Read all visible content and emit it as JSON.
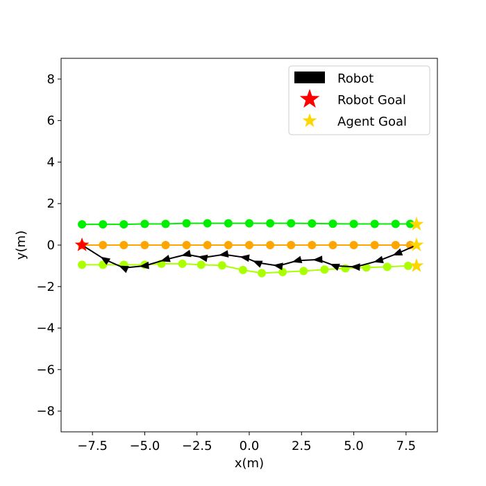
{
  "chart_data": {
    "type": "line",
    "xlabel": "x(m)",
    "ylabel": "y(m)",
    "xlim": [
      -9,
      9
    ],
    "ylim": [
      -9,
      9
    ],
    "xticks": [
      -7.5,
      -5.0,
      -2.5,
      0.0,
      2.5,
      5.0,
      7.5
    ],
    "xtick_labels": [
      "−7.5",
      "−5.0",
      "−2.5",
      "0.0",
      "2.5",
      "5.0",
      "7.5"
    ],
    "yticks": [
      -8,
      -6,
      -4,
      -2,
      0,
      2,
      4,
      6,
      8
    ],
    "ytick_labels": [
      "−8",
      "−6",
      "−4",
      "−2",
      "0",
      "2",
      "4",
      "6",
      "8"
    ],
    "grid": false,
    "legend_position": "top-right",
    "legend": [
      {
        "label": "Robot",
        "marker": "rectangle",
        "color": "#000000"
      },
      {
        "label": "Robot Goal",
        "marker": "star",
        "color": "#ff0000"
      },
      {
        "label": "Agent Goal",
        "marker": "star",
        "color": "#ffd700"
      }
    ],
    "agents": [
      {
        "color": "#00ee00",
        "points": [
          [
            -8,
            1.0
          ],
          [
            -7,
            1.0
          ],
          [
            -6,
            1.0
          ],
          [
            -5,
            1.02
          ],
          [
            -4,
            1.02
          ],
          [
            -3,
            1.05
          ],
          [
            -2,
            1.05
          ],
          [
            -1,
            1.05
          ],
          [
            0,
            1.05
          ],
          [
            1,
            1.05
          ],
          [
            2,
            1.05
          ],
          [
            3,
            1.04
          ],
          [
            4,
            1.03
          ],
          [
            5,
            1.02
          ],
          [
            6,
            1.02
          ],
          [
            7,
            1.02
          ],
          [
            7.7,
            1.02
          ]
        ],
        "goal": [
          8,
          1.0
        ]
      },
      {
        "color": "#ffa500",
        "points": [
          [
            -8,
            0
          ],
          [
            -7,
            0
          ],
          [
            -6,
            0
          ],
          [
            -5,
            0
          ],
          [
            -4,
            0
          ],
          [
            -3,
            0
          ],
          [
            -2,
            0
          ],
          [
            -1,
            0
          ],
          [
            0,
            0
          ],
          [
            1,
            0
          ],
          [
            2,
            0
          ],
          [
            3,
            0
          ],
          [
            4,
            0
          ],
          [
            5,
            0
          ],
          [
            6,
            0
          ],
          [
            7,
            0
          ],
          [
            7.7,
            0
          ]
        ],
        "goal": [
          8,
          0
        ]
      },
      {
        "color": "#aaff00",
        "points": [
          [
            -8,
            -0.95
          ],
          [
            -7,
            -0.95
          ],
          [
            -6,
            -0.95
          ],
          [
            -5,
            -0.95
          ],
          [
            -4.2,
            -0.9
          ],
          [
            -3.2,
            -0.9
          ],
          [
            -2.3,
            -0.95
          ],
          [
            -1.3,
            -0.98
          ],
          [
            -0.3,
            -1.2
          ],
          [
            0.6,
            -1.35
          ],
          [
            1.6,
            -1.3
          ],
          [
            2.6,
            -1.25
          ],
          [
            3.6,
            -1.18
          ],
          [
            4.6,
            -1.12
          ],
          [
            5.6,
            -1.08
          ],
          [
            6.6,
            -1.05
          ],
          [
            7.6,
            -1.0
          ]
        ],
        "goal": [
          8,
          -1.0
        ]
      }
    ],
    "robot": {
      "color": "#000000",
      "points": [
        [
          -8,
          0
        ],
        [
          -6.9,
          -0.7
        ],
        [
          -6,
          -1.1
        ],
        [
          -5,
          -1.0
        ],
        [
          -4,
          -0.7
        ],
        [
          -3,
          -0.45
        ],
        [
          -2.2,
          -0.6
        ],
        [
          -1.2,
          -0.45
        ],
        [
          -0.2,
          -0.6
        ],
        [
          0.4,
          -0.85
        ],
        [
          1.4,
          -1.0
        ],
        [
          2.3,
          -0.75
        ],
        [
          3.3,
          -0.7
        ],
        [
          4.1,
          -1.0
        ],
        [
          5.1,
          -1.05
        ],
        [
          6.2,
          -0.75
        ],
        [
          7.1,
          -0.4
        ],
        [
          8,
          0
        ]
      ],
      "goal": [
        -8,
        0
      ]
    }
  }
}
